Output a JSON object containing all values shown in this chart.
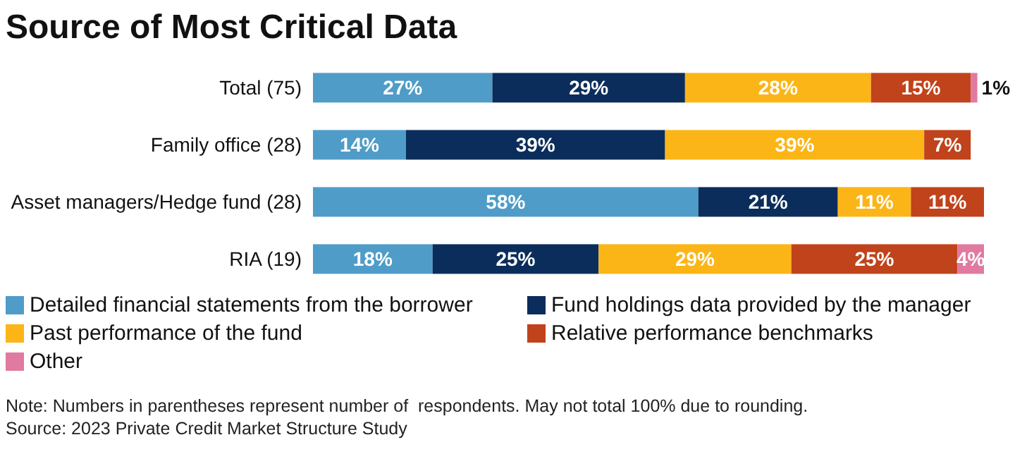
{
  "chart_data": {
    "type": "bar",
    "orientation": "horizontal",
    "stacked": true,
    "title": "Source of Most Critical Data",
    "categories": [
      "Total (75)",
      "Family office (28)",
      "Asset managers/Hedge fund (28)",
      "RIA (19)"
    ],
    "series": [
      {
        "name": "Detailed financial statements from the borrower",
        "color": "#4f9cc8",
        "values": [
          27,
          14,
          58,
          18
        ],
        "value_labels": [
          "27%",
          "14%",
          "58%",
          "18%"
        ]
      },
      {
        "name": "Fund holdings data provided by the manager",
        "color": "#0b2d5b",
        "values": [
          29,
          39,
          21,
          25
        ],
        "value_labels": [
          "29%",
          "39%",
          "21%",
          "25%"
        ]
      },
      {
        "name": "Past performance of the fund",
        "color": "#fbb516",
        "values": [
          28,
          39,
          11,
          29
        ],
        "value_labels": [
          "28%",
          "39%",
          "11%",
          "29%"
        ]
      },
      {
        "name": "Relative performance benchmarks",
        "color": "#c0431b",
        "values": [
          15,
          7,
          11,
          25
        ],
        "value_labels": [
          "15%",
          "7%",
          "11%",
          "25%"
        ]
      },
      {
        "name": "Other",
        "color": "#e07aa0",
        "values": [
          1,
          0,
          0,
          4
        ],
        "value_labels": [
          "1%",
          null,
          null,
          "4%"
        ]
      }
    ],
    "legend": "bottom",
    "annotations": [
      "Note: Numbers in parentheses represent number of  respondents. May not total 100% due to rounding.",
      "Source: 2023 Private Credit Market Structure Study"
    ]
  }
}
